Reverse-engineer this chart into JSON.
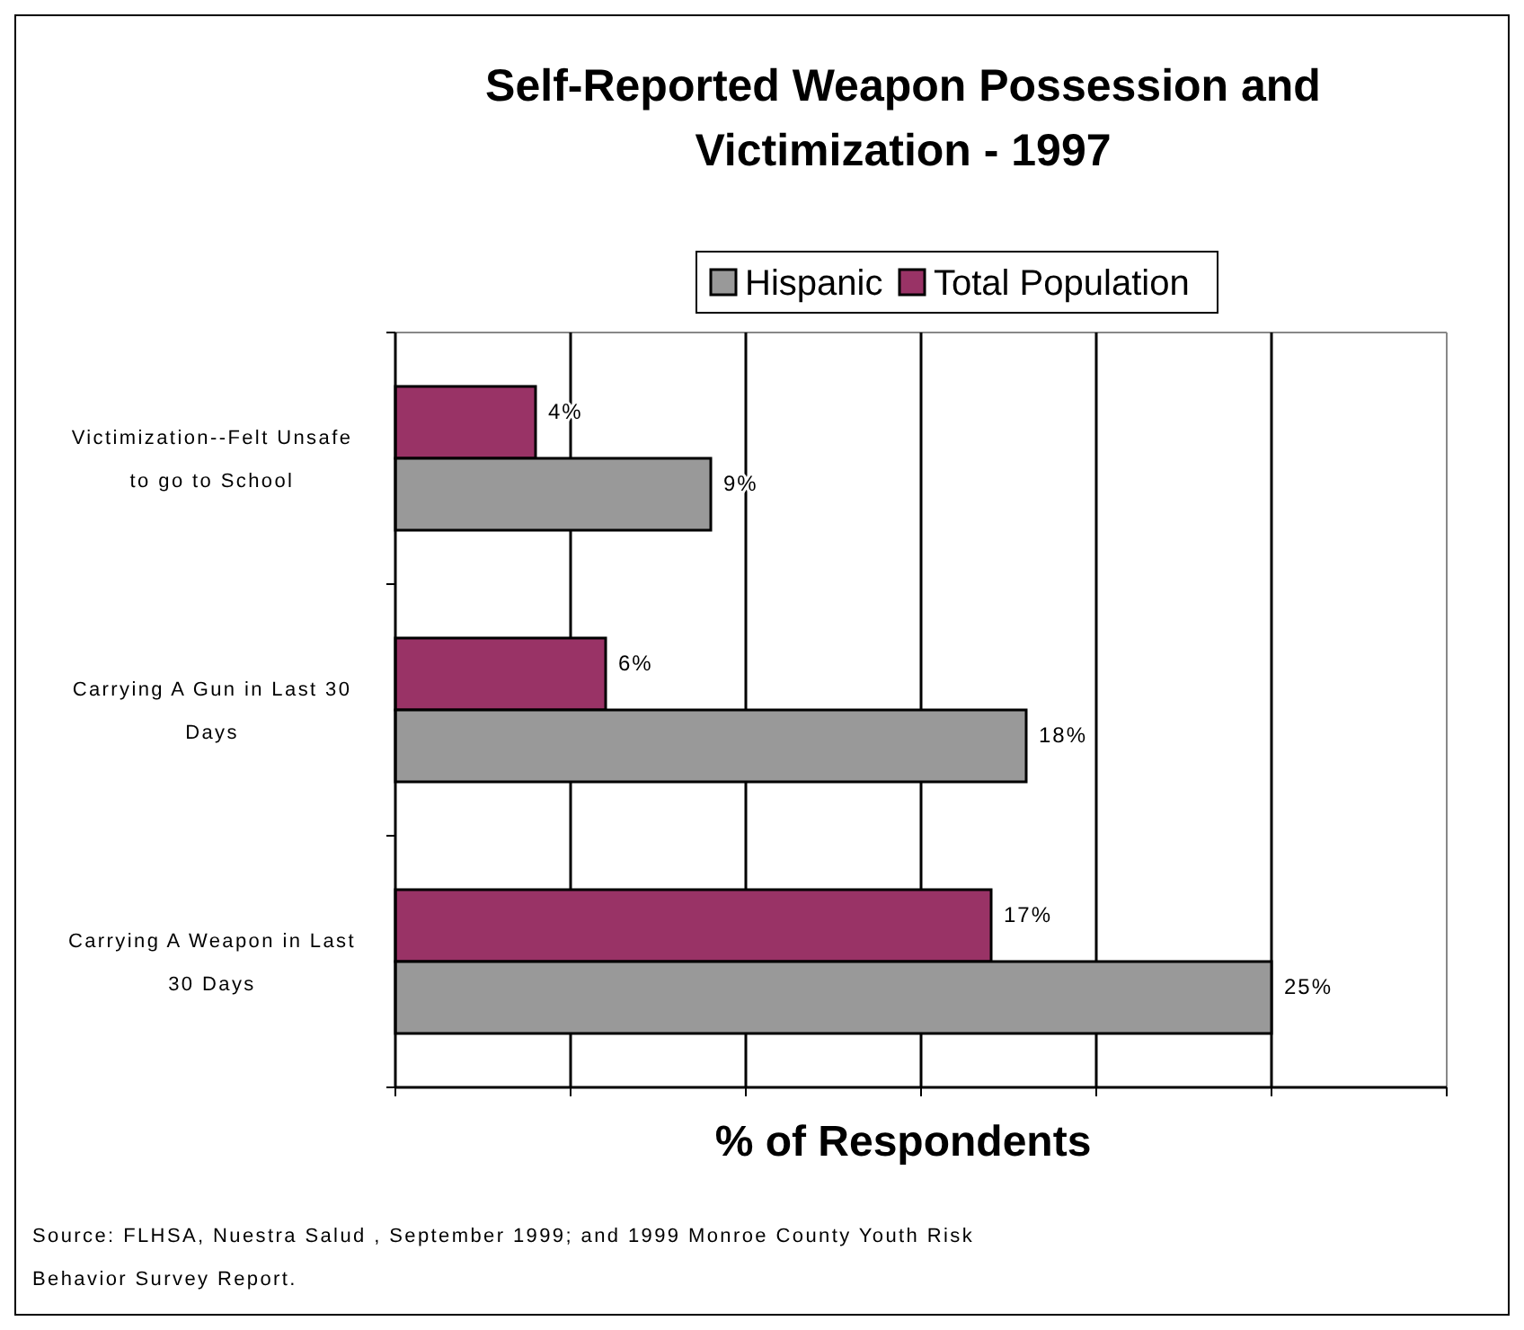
{
  "chart_data": {
    "type": "bar",
    "orientation": "horizontal",
    "title": "Self-Reported Weapon Possession and Victimization - 1997",
    "xlabel": "% of Respondents",
    "categories": [
      "Victimization--Felt Unsafe to go to School",
      "Carrying A Gun in Last 30 Days",
      "Carrying A Weapon in Last 30 Days"
    ],
    "series": [
      {
        "name": "Hispanic",
        "color": "#999999",
        "values": [
          9,
          18,
          25
        ],
        "value_labels": [
          "9%",
          "18%",
          "25%"
        ]
      },
      {
        "name": "Total Population",
        "color": "#993366",
        "values": [
          4,
          6,
          17
        ],
        "value_labels": [
          "4%",
          "6%",
          "17%"
        ]
      }
    ],
    "tick_labels": "y",
    "grid": "x",
    "legend": "top",
    "annotations": [
      "Source: FLHSA, Nuestra Salud , September 1999; and 1999 Monroe County Youth Risk Behavior Survey Report."
    ]
  }
}
